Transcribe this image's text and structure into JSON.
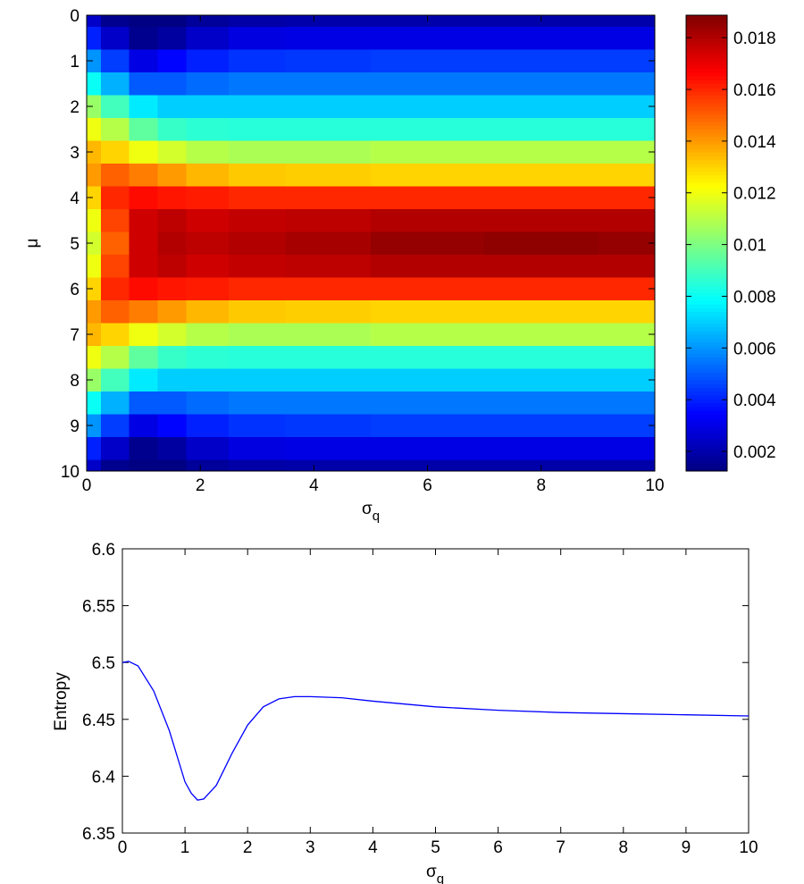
{
  "chart_data": [
    {
      "type": "heatmap",
      "x": [
        0,
        0.5,
        1,
        1.5,
        2,
        3,
        4,
        6,
        8,
        10
      ],
      "y": [
        0,
        0.5,
        1,
        1.5,
        2,
        2.5,
        3,
        3.5,
        4,
        4.5,
        5,
        5.5,
        6,
        6.5,
        7,
        7.5,
        8,
        8.5,
        9,
        9.5,
        10
      ],
      "z": [
        [
          0.0025,
          0.0015,
          0.0013,
          0.0013,
          0.0017,
          0.0019,
          0.002,
          0.002,
          0.002,
          0.002
        ],
        [
          0.004,
          0.0025,
          0.0015,
          0.0018,
          0.0025,
          0.0029,
          0.003,
          0.003,
          0.003,
          0.003
        ],
        [
          0.006,
          0.0045,
          0.003,
          0.0035,
          0.004,
          0.0043,
          0.0044,
          0.0045,
          0.0045,
          0.0045
        ],
        [
          0.008,
          0.0065,
          0.005,
          0.005,
          0.0053,
          0.0055,
          0.0055,
          0.0055,
          0.0055,
          0.0055
        ],
        [
          0.0105,
          0.009,
          0.0075,
          0.007,
          0.007,
          0.007,
          0.007,
          0.007,
          0.007,
          0.007
        ],
        [
          0.012,
          0.011,
          0.0095,
          0.0088,
          0.0086,
          0.0085,
          0.0085,
          0.0085,
          0.0085,
          0.0085
        ],
        [
          0.0135,
          0.013,
          0.012,
          0.0115,
          0.011,
          0.0108,
          0.0108,
          0.011,
          0.011,
          0.011
        ],
        [
          0.014,
          0.015,
          0.0145,
          0.014,
          0.0135,
          0.0132,
          0.0131,
          0.013,
          0.013,
          0.013
        ],
        [
          0.013,
          0.016,
          0.0165,
          0.0163,
          0.0162,
          0.016,
          0.016,
          0.016,
          0.016,
          0.016
        ],
        [
          0.012,
          0.0155,
          0.0175,
          0.0178,
          0.0175,
          0.0177,
          0.0178,
          0.018,
          0.018,
          0.018
        ],
        [
          0.0115,
          0.015,
          0.0175,
          0.018,
          0.0178,
          0.018,
          0.0182,
          0.0185,
          0.0186,
          0.0185
        ],
        [
          0.012,
          0.0155,
          0.0175,
          0.0178,
          0.0175,
          0.0177,
          0.0178,
          0.018,
          0.018,
          0.018
        ],
        [
          0.013,
          0.016,
          0.0165,
          0.0163,
          0.0162,
          0.016,
          0.016,
          0.016,
          0.016,
          0.016
        ],
        [
          0.014,
          0.015,
          0.0145,
          0.014,
          0.0135,
          0.0132,
          0.0131,
          0.013,
          0.013,
          0.013
        ],
        [
          0.0135,
          0.013,
          0.012,
          0.0115,
          0.011,
          0.0108,
          0.0108,
          0.011,
          0.011,
          0.011
        ],
        [
          0.012,
          0.011,
          0.0095,
          0.0088,
          0.0086,
          0.0085,
          0.0085,
          0.0085,
          0.0085,
          0.0085
        ],
        [
          0.0105,
          0.009,
          0.0075,
          0.007,
          0.007,
          0.007,
          0.007,
          0.007,
          0.007,
          0.007
        ],
        [
          0.008,
          0.0065,
          0.005,
          0.005,
          0.0053,
          0.0055,
          0.0055,
          0.0055,
          0.0055,
          0.0055
        ],
        [
          0.006,
          0.0045,
          0.003,
          0.0035,
          0.004,
          0.0043,
          0.0044,
          0.0045,
          0.0045,
          0.0045
        ],
        [
          0.004,
          0.0025,
          0.0015,
          0.0018,
          0.0025,
          0.0029,
          0.003,
          0.003,
          0.003,
          0.003
        ],
        [
          0.0025,
          0.0015,
          0.0013,
          0.0013,
          0.0017,
          0.0019,
          0.002,
          0.002,
          0.002,
          0.002
        ]
      ],
      "xlim": [
        0,
        10
      ],
      "xticks": [
        0,
        2,
        4,
        6,
        8,
        10
      ],
      "ylim": [
        0,
        10
      ],
      "yticks": [
        0,
        1,
        2,
        3,
        4,
        5,
        6,
        7,
        8,
        9,
        10
      ],
      "y_reversed": true,
      "clim": [
        0.00124,
        0.01887
      ],
      "cticks": [
        0.002,
        0.004,
        0.006,
        0.008,
        0.01,
        0.012,
        0.014,
        0.016,
        0.018
      ],
      "colormap": "jet",
      "xlabel": {
        "base": "σ",
        "sub": "q"
      },
      "ylabel": "μ"
    },
    {
      "type": "line",
      "x": [
        0,
        0.1,
        0.25,
        0.5,
        0.75,
        1,
        1.1,
        1.2,
        1.3,
        1.5,
        1.75,
        2,
        2.25,
        2.5,
        2.75,
        3,
        3.5,
        4,
        5,
        6,
        7,
        8,
        9,
        10
      ],
      "series": [
        {
          "color": "#0000ff",
          "values": [
            6.5,
            6.501,
            6.497,
            6.475,
            6.44,
            6.395,
            6.385,
            6.379,
            6.38,
            6.392,
            6.42,
            6.445,
            6.461,
            6.468,
            6.47,
            6.47,
            6.469,
            6.466,
            6.461,
            6.458,
            6.456,
            6.455,
            6.454,
            6.453
          ]
        }
      ],
      "xlim": [
        0,
        10
      ],
      "xticks": [
        0,
        1,
        2,
        3,
        4,
        5,
        6,
        7,
        8,
        9,
        10
      ],
      "ylim": [
        6.35,
        6.6
      ],
      "yticks": [
        6.35,
        6.4,
        6.45,
        6.5,
        6.55,
        6.6
      ],
      "xlabel": {
        "base": "σ",
        "sub": "q"
      },
      "ylabel": "Entropy"
    }
  ]
}
